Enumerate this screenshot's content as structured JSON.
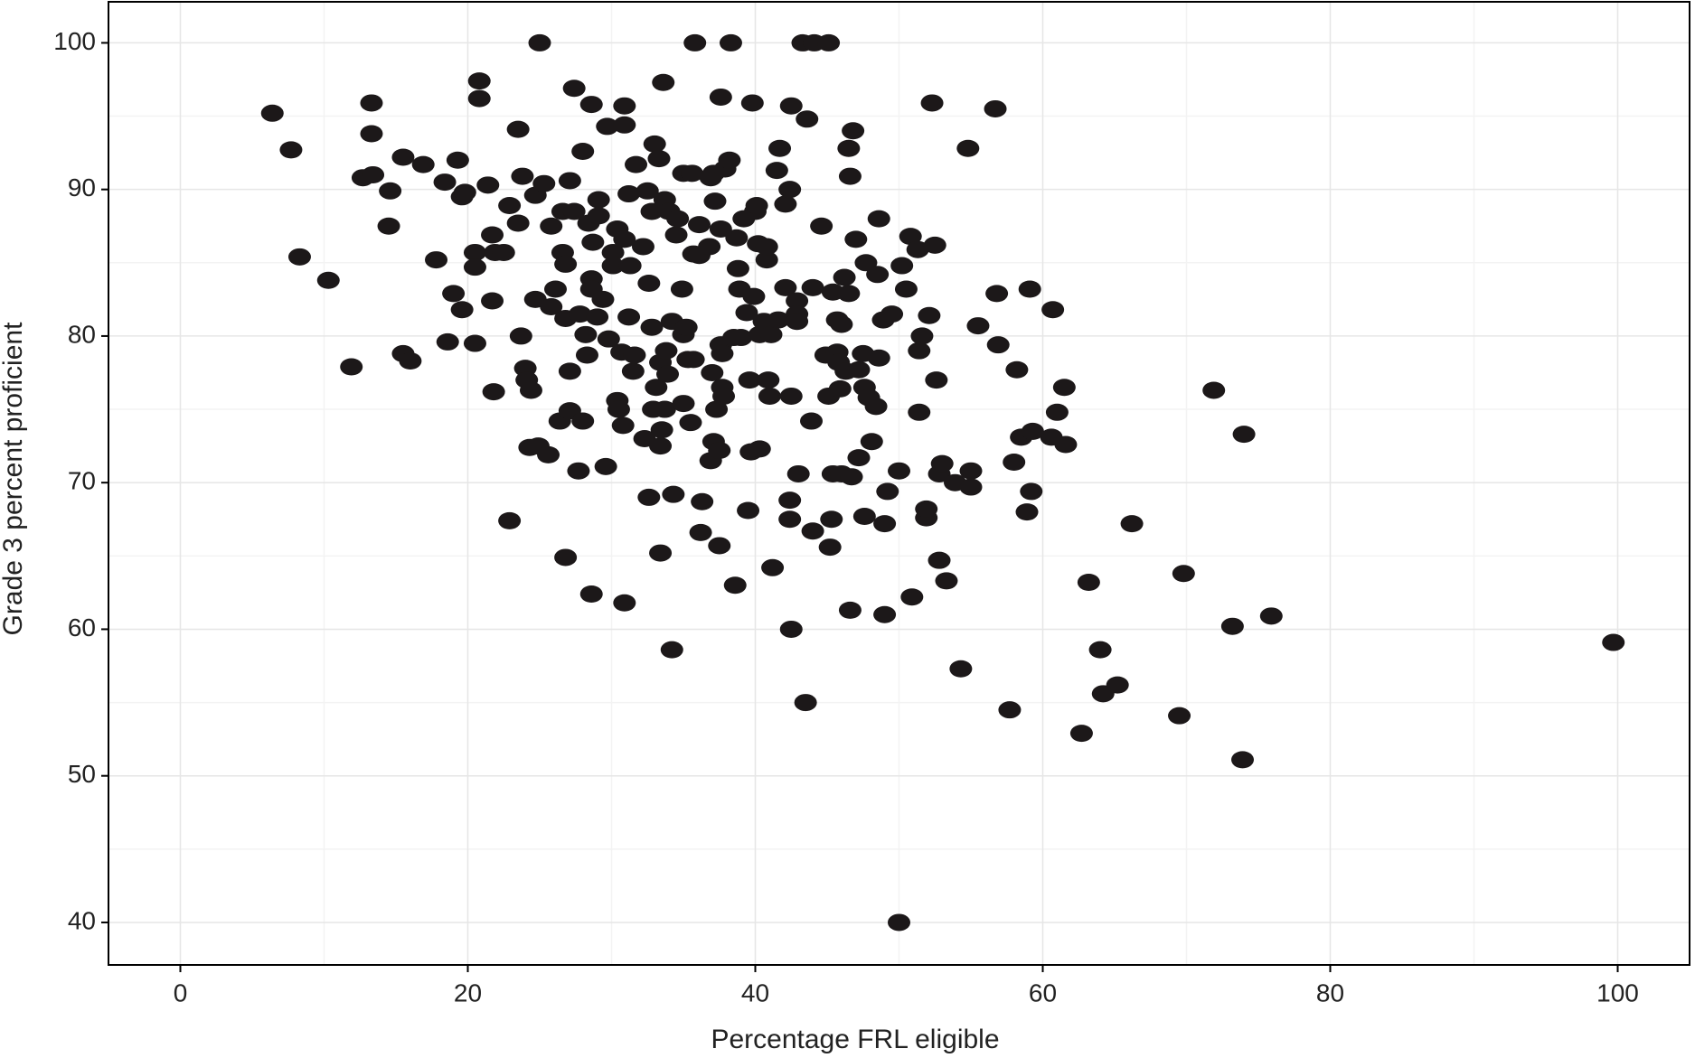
{
  "chart_data": {
    "type": "scatter",
    "x_label": "Percentage FRL eligible",
    "y_label": "Grade 3 percent proficient",
    "color": "#1c1819",
    "xlim": [
      -5,
      105
    ],
    "ylim": [
      37.1,
      102.8
    ],
    "xticks": [
      0,
      20,
      40,
      60,
      80,
      100
    ],
    "yticks": [
      40,
      50,
      60,
      70,
      80,
      90,
      100
    ],
    "grid": true,
    "x": [
      6.4,
      7.7,
      8.3,
      10.3,
      11.9,
      12.7,
      13.3,
      13.4,
      13.3,
      14.6,
      14.5,
      15.5,
      15.5,
      16.0,
      16.9,
      17.8,
      18.4,
      18.6,
      19.3,
      19.0,
      19.6,
      19.6,
      19.8,
      20.8,
      20.8,
      20.5,
      20.5,
      20.5,
      21.4,
      21.7,
      21.7,
      21.8,
      21.9,
      22.5,
      22.9,
      22.9,
      23.5,
      23.5,
      23.8,
      23.7,
      24.0,
      24.1,
      24.3,
      24.4,
      24.7,
      24.7,
      25.0,
      24.9,
      25.3,
      25.6,
      25.8,
      25.8,
      26.1,
      26.4,
      26.6,
      26.6,
      26.8,
      26.8,
      26.8,
      27.1,
      27.1,
      27.1,
      27.4,
      27.4,
      27.7,
      27.8,
      28.0,
      28.0,
      28.2,
      28.3,
      28.4,
      28.6,
      28.6,
      28.6,
      28.7,
      28.6,
      29.0,
      29.1,
      29.1,
      29.4,
      29.6,
      29.7,
      29.8,
      30.1,
      30.1,
      30.4,
      30.4,
      30.5,
      30.7,
      30.8,
      30.9,
      30.9,
      30.9,
      30.9,
      31.2,
      31.2,
      31.3,
      31.5,
      31.7,
      31.6,
      32.2,
      32.3,
      32.5,
      32.6,
      32.6,
      32.8,
      32.8,
      32.9,
      33.0,
      33.1,
      33.3,
      33.4,
      33.4,
      33.4,
      33.6,
      33.5,
      33.7,
      33.7,
      33.8,
      33.9,
      34.0,
      34.2,
      34.3,
      34.2,
      34.5,
      34.6,
      34.9,
      35.0,
      35.0,
      35.2,
      35.3,
      35.0,
      35.5,
      35.6,
      35.8,
      35.7,
      35.7,
      36.1,
      36.1,
      36.2,
      36.3,
      36.8,
      36.9,
      36.9,
      37.0,
      37.1,
      37.2,
      37.1,
      37.3,
      37.5,
      37.5,
      37.6,
      37.6,
      37.6,
      37.7,
      37.7,
      37.8,
      37.9,
      38.2,
      38.3,
      38.5,
      38.6,
      38.7,
      38.8,
      38.9,
      39.0,
      39.2,
      39.4,
      39.5,
      39.6,
      39.7,
      39.8,
      39.9,
      40.0,
      40.1,
      40.3,
      40.3,
      40.2,
      40.6,
      40.8,
      40.8,
      40.9,
      41.0,
      41.1,
      41.2,
      41.5,
      41.6,
      41.7,
      42.1,
      42.1,
      42.4,
      42.4,
      42.4,
      42.5,
      42.5,
      42.5,
      42.9,
      42.9,
      42.9,
      43.0,
      43.3,
      43.5,
      43.6,
      43.9,
      44.0,
      44.1,
      44.0,
      44.6,
      45.1,
      44.9,
      45.1,
      45.2,
      45.3,
      45.4,
      45.4,
      45.7,
      45.7,
      45.8,
      45.9,
      46.0,
      46.0,
      46.2,
      46.3,
      46.5,
      46.5,
      46.6,
      46.7,
      46.8,
      46.6,
      47.0,
      47.2,
      47.2,
      47.5,
      47.6,
      47.6,
      47.7,
      47.9,
      48.1,
      48.4,
      48.6,
      48.6,
      48.5,
      48.9,
      49.0,
      49.0,
      49.2,
      49.5,
      50.0,
      50.0,
      50.2,
      50.5,
      50.8,
      50.9,
      51.3,
      51.4,
      51.4,
      51.6,
      51.9,
      51.9,
      52.1,
      52.3,
      52.5,
      52.6,
      52.8,
      52.8,
      53.0,
      53.3,
      53.9,
      54.3,
      54.8,
      55.0,
      55.0,
      55.5,
      56.7,
      56.8,
      56.9,
      57.7,
      58.0,
      58.2,
      58.5,
      58.9,
      59.1,
      59.2,
      59.3,
      60.6,
      60.7,
      61.0,
      61.5,
      61.6,
      62.7,
      63.2,
      64.0,
      64.2,
      65.2,
      66.2,
      69.5,
      69.8,
      71.9,
      73.2,
      73.9,
      74.0,
      75.9,
      99.7
    ],
    "values": [
      95.2,
      92.7,
      85.4,
      83.8,
      77.9,
      90.8,
      95.9,
      91.0,
      93.8,
      89.9,
      87.5,
      92.2,
      78.8,
      78.3,
      91.7,
      85.2,
      90.5,
      79.6,
      92.0,
      82.9,
      81.8,
      89.5,
      89.8,
      97.4,
      96.2,
      85.7,
      79.5,
      84.7,
      90.3,
      86.9,
      82.4,
      76.2,
      85.7,
      85.7,
      67.4,
      88.9,
      94.1,
      87.7,
      90.9,
      80.0,
      77.8,
      77.0,
      72.4,
      76.3,
      82.5,
      89.6,
      100,
      72.5,
      90.4,
      71.9,
      87.5,
      82.0,
      83.2,
      74.2,
      88.5,
      85.7,
      84.9,
      64.9,
      81.2,
      90.6,
      77.6,
      74.9,
      96.9,
      88.5,
      70.8,
      81.5,
      92.6,
      74.2,
      80.1,
      78.7,
      87.7,
      83.9,
      62.4,
      95.8,
      86.4,
      83.2,
      81.3,
      89.3,
      88.2,
      82.5,
      71.1,
      94.3,
      79.8,
      85.7,
      84.8,
      87.3,
      75.6,
      75.0,
      78.9,
      73.9,
      95.7,
      94.4,
      61.8,
      86.6,
      89.7,
      81.3,
      84.8,
      77.6,
      91.7,
      78.7,
      86.1,
      73.0,
      89.9,
      69.0,
      83.6,
      88.5,
      80.6,
      75.0,
      93.1,
      76.5,
      92.1,
      72.5,
      65.2,
      78.2,
      97.3,
      73.6,
      89.3,
      75.0,
      79.0,
      77.4,
      88.5,
      58.6,
      69.2,
      81.0,
      86.9,
      88.0,
      83.2,
      75.4,
      80.1,
      80.6,
      78.4,
      91.1,
      74.1,
      91.1,
      100,
      78.4,
      85.6,
      87.6,
      85.5,
      66.6,
      68.7,
      86.1,
      90.8,
      71.5,
      77.5,
      72.8,
      89.2,
      91.1,
      75.0,
      72.2,
      65.7,
      96.3,
      79.4,
      87.3,
      76.5,
      78.8,
      75.9,
      91.4,
      92.0,
      100,
      79.9,
      63.0,
      86.7,
      84.6,
      83.2,
      79.9,
      88.0,
      81.6,
      68.1,
      77.0,
      72.1,
      95.9,
      82.7,
      88.5,
      88.9,
      72.3,
      80.1,
      86.3,
      81.0,
      85.2,
      86.1,
      77.0,
      75.9,
      80.1,
      64.2,
      91.3,
      81.1,
      92.8,
      89.0,
      83.3,
      90.0,
      68.8,
      67.5,
      75.9,
      60.0,
      95.7,
      82.4,
      81.5,
      81.0,
      70.6,
      100,
      55.0,
      94.8,
      74.2,
      83.3,
      100,
      66.7,
      87.5,
      100,
      78.7,
      75.9,
      65.6,
      67.5,
      70.6,
      83.0,
      81.1,
      78.9,
      78.2,
      76.4,
      80.8,
      70.6,
      84.0,
      77.6,
      92.8,
      82.9,
      61.3,
      70.4,
      94.0,
      90.9,
      86.6,
      71.7,
      77.7,
      78.8,
      76.5,
      67.7,
      85.0,
      75.8,
      72.8,
      75.2,
      88.0,
      78.5,
      84.2,
      81.1,
      67.2,
      61.0,
      69.4,
      81.5,
      70.8,
      40.0,
      84.8,
      83.2,
      86.8,
      62.2,
      85.9,
      74.8,
      79.0,
      80.0,
      67.6,
      68.2,
      81.4,
      95.9,
      86.2,
      77.0,
      64.7,
      70.6,
      71.3,
      63.3,
      70.0,
      57.3,
      92.8,
      69.7,
      70.8,
      80.7,
      95.5,
      82.9,
      79.4,
      54.5,
      71.4,
      77.7,
      73.1,
      68.0,
      83.2,
      69.4,
      73.5,
      73.1,
      81.8,
      74.8,
      76.5,
      72.6,
      52.9,
      63.2,
      58.6,
      55.6,
      56.2,
      67.2,
      54.1,
      63.8,
      76.3,
      60.2,
      51.1,
      73.3,
      60.9,
      59.1
    ]
  }
}
